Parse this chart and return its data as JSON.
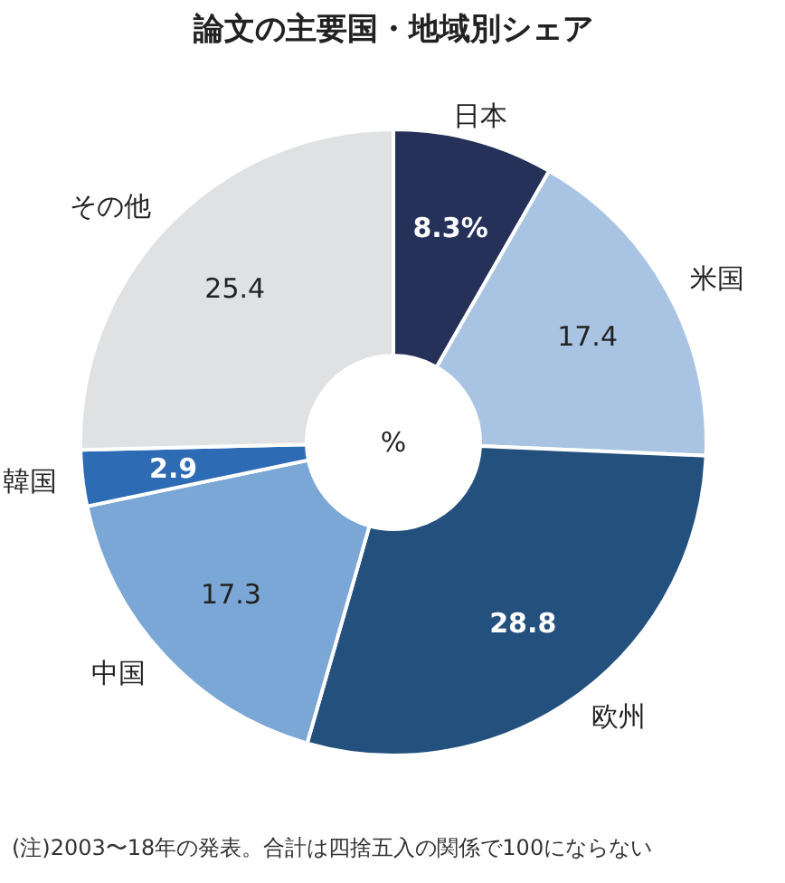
{
  "chart_data": {
    "type": "donut",
    "title": "論文の主要国・地域別シェア",
    "categories": [
      "日本",
      "米国",
      "欧州",
      "中国",
      "韓国",
      "その他"
    ],
    "values": [
      8.3,
      17.4,
      28.8,
      17.3,
      2.9,
      25.4
    ],
    "value_labels": [
      "8.3%",
      "17.4",
      "28.8",
      "17.3",
      "2.9",
      "25.4"
    ],
    "colors": [
      "#253158",
      "#a9c4e2",
      "#24507e",
      "#7ba7d6",
      "#2e6bb5",
      "#dfe1e3"
    ],
    "annotations": [
      "%",
      "(注)2003〜18年の発表。合計は四捨五入の関係で100にならない"
    ]
  }
}
